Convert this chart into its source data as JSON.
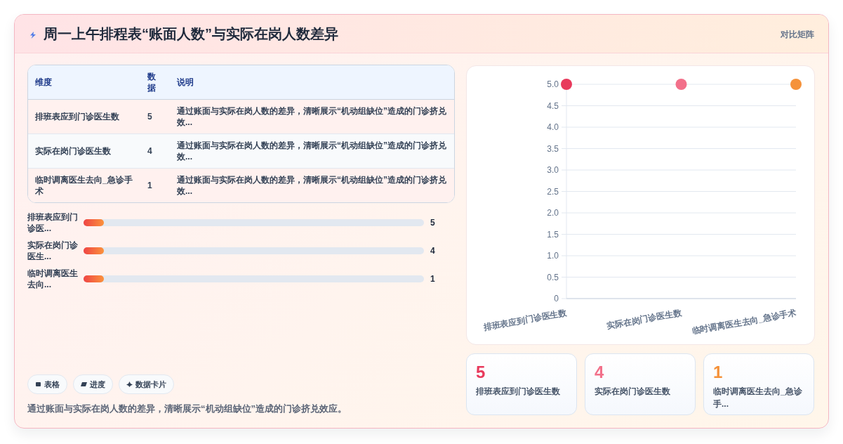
{
  "chart_data": [
    {
      "type": "other",
      "title": "周一上午排程表“账面人数”与实际在岗人数差异",
      "subtitle": "对比矩阵",
      "categories": [
        "排班表应到门诊医生数",
        "实际在岗门诊医生数",
        "临时调离医生去向_急诊手术"
      ],
      "values": [
        5,
        4,
        1
      ],
      "data_labels": true,
      "annotations": [
        "维度",
        "数据",
        "说明",
        "通过账面与实际在岗人数的差异，清晰展示“机动组缺位”造成的门诊挤兑效...",
        "通过账面与实际在岗人数的差异，清晰展示“机动组缺位”造成的门诊挤兑效...",
        "通过账面与实际在岗人数的差异，清晰展示“机动组缺位”造成的门诊挤兑效..."
      ]
    },
    {
      "type": "other",
      "categories": [
        "排班表应到门诊医...",
        "实际在岗门诊医生...",
        "临时调离医生去向..."
      ],
      "values": [
        5,
        4,
        1
      ],
      "data_labels": true
    },
    {
      "type": "other",
      "annotations": [
        "表格",
        "进度",
        "数据卡片",
        "通过账面与实际在岗人数的差异，清晰展示“机动组缺位”造成的门诊挤兑效应。"
      ]
    },
    {
      "type": "scatter",
      "categories": [
        "排班表应到门诊医生数",
        "实际在岗门诊医生数",
        "临时调离医生去向_急诊手术"
      ],
      "values": [
        5,
        5,
        5
      ],
      "colors": [
        "#e83a5c",
        "#f2708a",
        "#f5923a"
      ],
      "ylim": [
        0,
        5
      ],
      "yticks": [
        0,
        0.5,
        {
          "value": 1,
          "label": "1.0"
        },
        1.5,
        {
          "value": 2,
          "label": "2.0"
        },
        2.5,
        {
          "value": 3,
          "label": "3.0"
        },
        3.5,
        {
          "value": 4,
          "label": "4.0"
        },
        4.5,
        {
          "value": 5,
          "label": "5.0"
        }
      ],
      "grid": "y",
      "marker": "circle"
    },
    {
      "type": "other",
      "categories": [
        "排班表应到门诊医生数",
        "实际在岗门诊医生数",
        "临时调离医生去向_急诊手..."
      ],
      "values": [
        5,
        4,
        1
      ],
      "data_labels": true
    }
  ]
}
